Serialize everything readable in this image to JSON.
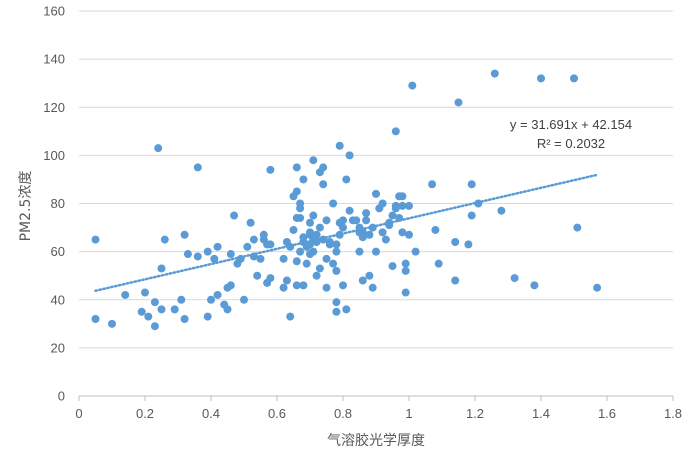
{
  "chart_data": {
    "type": "scatter",
    "title": "",
    "xlabel": "气溶胶光学厚度",
    "ylabel": "PM2.5浓度",
    "xlim": [
      0,
      1.8
    ],
    "ylim": [
      0,
      160
    ],
    "x_ticks": [
      "0",
      "0.2",
      "0.4",
      "0.6",
      "0.8",
      "1",
      "1.2",
      "1.4",
      "1.6",
      "1.8"
    ],
    "y_ticks": [
      "0",
      "20",
      "40",
      "60",
      "80",
      "100",
      "120",
      "140",
      "160"
    ],
    "grid": "horizontal",
    "legend": "none",
    "marker_color": "#5B9BD5",
    "trendline": {
      "type": "linear",
      "style": "dotted",
      "color": "#5B9BD5",
      "slope": 31.691,
      "intercept": 42.154,
      "x_range": [
        0.05,
        1.57
      ],
      "equation": "y = 31.691x + 42.154",
      "r2_label": "R² = 0.2032"
    },
    "points": [
      [
        0.05,
        65
      ],
      [
        0.05,
        32
      ],
      [
        0.1,
        30
      ],
      [
        0.14,
        42
      ],
      [
        0.19,
        35
      ],
      [
        0.2,
        43
      ],
      [
        0.21,
        33
      ],
      [
        0.23,
        29
      ],
      [
        0.23,
        39
      ],
      [
        0.24,
        103
      ],
      [
        0.25,
        53
      ],
      [
        0.25,
        36
      ],
      [
        0.26,
        65
      ],
      [
        0.29,
        36
      ],
      [
        0.31,
        40
      ],
      [
        0.32,
        32
      ],
      [
        0.32,
        67
      ],
      [
        0.33,
        59
      ],
      [
        0.36,
        95
      ],
      [
        0.36,
        58
      ],
      [
        0.39,
        60
      ],
      [
        0.39,
        33
      ],
      [
        0.4,
        40
      ],
      [
        0.41,
        57
      ],
      [
        0.42,
        62
      ],
      [
        0.42,
        42
      ],
      [
        0.44,
        38
      ],
      [
        0.45,
        36
      ],
      [
        0.45,
        45
      ],
      [
        0.46,
        46
      ],
      [
        0.46,
        59
      ],
      [
        0.47,
        75
      ],
      [
        0.48,
        55
      ],
      [
        0.49,
        57
      ],
      [
        0.5,
        40
      ],
      [
        0.51,
        62
      ],
      [
        0.52,
        72
      ],
      [
        0.53,
        58
      ],
      [
        0.53,
        65
      ],
      [
        0.54,
        50
      ],
      [
        0.55,
        57
      ],
      [
        0.56,
        65
      ],
      [
        0.56,
        67
      ],
      [
        0.57,
        47
      ],
      [
        0.57,
        63
      ],
      [
        0.58,
        49
      ],
      [
        0.58,
        63
      ],
      [
        0.58,
        94
      ],
      [
        0.62,
        45
      ],
      [
        0.62,
        57
      ],
      [
        0.63,
        48
      ],
      [
        0.63,
        64
      ],
      [
        0.64,
        62
      ],
      [
        0.64,
        33
      ],
      [
        0.65,
        83
      ],
      [
        0.65,
        69
      ],
      [
        0.66,
        56
      ],
      [
        0.66,
        46
      ],
      [
        0.66,
        74
      ],
      [
        0.66,
        85
      ],
      [
        0.66,
        95
      ],
      [
        0.67,
        60
      ],
      [
        0.67,
        74
      ],
      [
        0.67,
        80
      ],
      [
        0.67,
        78
      ],
      [
        0.68,
        46
      ],
      [
        0.68,
        90
      ],
      [
        0.68,
        64
      ],
      [
        0.68,
        66
      ],
      [
        0.69,
        55
      ],
      [
        0.69,
        62
      ],
      [
        0.7,
        67
      ],
      [
        0.7,
        63
      ],
      [
        0.7,
        68
      ],
      [
        0.7,
        72
      ],
      [
        0.7,
        59
      ],
      [
        0.71,
        60
      ],
      [
        0.71,
        98
      ],
      [
        0.71,
        75
      ],
      [
        0.71,
        65
      ],
      [
        0.72,
        64
      ],
      [
        0.72,
        67
      ],
      [
        0.72,
        50
      ],
      [
        0.73,
        70
      ],
      [
        0.73,
        93
      ],
      [
        0.73,
        53
      ],
      [
        0.74,
        95
      ],
      [
        0.74,
        88
      ],
      [
        0.74,
        65
      ],
      [
        0.75,
        45
      ],
      [
        0.75,
        57
      ],
      [
        0.75,
        73
      ],
      [
        0.76,
        64
      ],
      [
        0.76,
        63
      ],
      [
        0.77,
        80
      ],
      [
        0.77,
        55
      ],
      [
        0.78,
        52
      ],
      [
        0.78,
        39
      ],
      [
        0.78,
        35
      ],
      [
        0.78,
        60
      ],
      [
        0.78,
        63
      ],
      [
        0.79,
        67
      ],
      [
        0.79,
        72
      ],
      [
        0.79,
        104
      ],
      [
        0.8,
        46
      ],
      [
        0.8,
        73
      ],
      [
        0.8,
        70
      ],
      [
        0.81,
        90
      ],
      [
        0.81,
        36
      ],
      [
        0.82,
        77
      ],
      [
        0.82,
        100
      ],
      [
        0.83,
        73
      ],
      [
        0.84,
        73
      ],
      [
        0.85,
        70
      ],
      [
        0.85,
        68
      ],
      [
        0.85,
        60
      ],
      [
        0.86,
        48
      ],
      [
        0.86,
        68
      ],
      [
        0.86,
        66
      ],
      [
        0.87,
        73
      ],
      [
        0.87,
        76
      ],
      [
        0.88,
        67
      ],
      [
        0.88,
        50
      ],
      [
        0.89,
        45
      ],
      [
        0.89,
        70
      ],
      [
        0.9,
        84
      ],
      [
        0.9,
        60
      ],
      [
        0.91,
        78
      ],
      [
        0.92,
        80
      ],
      [
        0.92,
        68
      ],
      [
        0.93,
        65
      ],
      [
        0.94,
        72
      ],
      [
        0.94,
        71
      ],
      [
        0.95,
        54
      ],
      [
        0.95,
        75
      ],
      [
        0.96,
        79
      ],
      [
        0.96,
        78
      ],
      [
        0.96,
        110
      ],
      [
        0.97,
        83
      ],
      [
        0.97,
        74
      ],
      [
        0.98,
        68
      ],
      [
        0.98,
        79
      ],
      [
        0.98,
        83
      ],
      [
        0.99,
        55
      ],
      [
        0.99,
        52
      ],
      [
        0.99,
        43
      ],
      [
        1.0,
        67
      ],
      [
        1.0,
        79
      ],
      [
        1.01,
        129
      ],
      [
        1.02,
        60
      ],
      [
        1.07,
        88
      ],
      [
        1.08,
        69
      ],
      [
        1.09,
        55
      ],
      [
        1.14,
        64
      ],
      [
        1.14,
        48
      ],
      [
        1.15,
        122
      ],
      [
        1.18,
        63
      ],
      [
        1.19,
        88
      ],
      [
        1.19,
        75
      ],
      [
        1.21,
        80
      ],
      [
        1.26,
        134
      ],
      [
        1.28,
        77
      ],
      [
        1.32,
        49
      ],
      [
        1.38,
        46
      ],
      [
        1.4,
        132
      ],
      [
        1.5,
        132
      ],
      [
        1.51,
        70
      ],
      [
        1.57,
        45
      ]
    ]
  }
}
